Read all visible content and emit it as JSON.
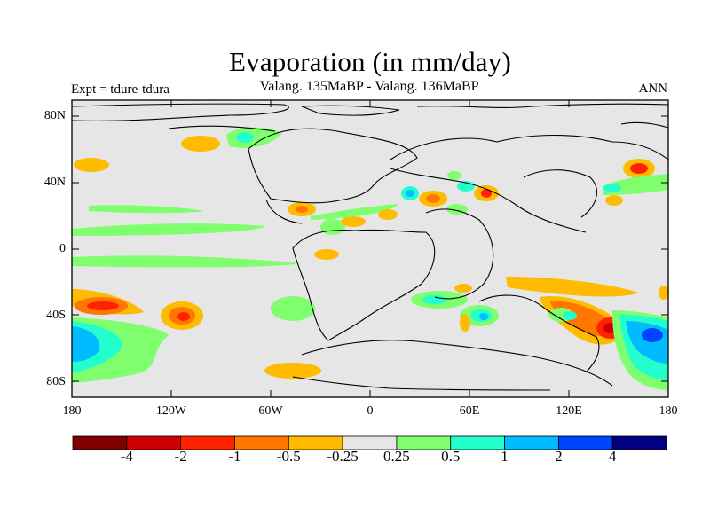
{
  "title": "Evaporation (in mm/day)",
  "subtitle": "Valang.  135MaBP - Valang.  136MaBP",
  "left_label": "Expt = tdure-tdura",
  "right_label": "ANN",
  "lat_ticks": [
    "80N",
    "40N",
    "0",
    "40S",
    "80S"
  ],
  "lon_ticks": [
    "180",
    "120W",
    "60W",
    "0",
    "60E",
    "120E",
    "180"
  ],
  "colorbar": {
    "colors": [
      "#800000",
      "#cc0000",
      "#ff2200",
      "#ff7700",
      "#ffbb00",
      "#e6e6e6",
      "#7fff6e",
      "#22ffcc",
      "#00bbff",
      "#0044ff",
      "#000080"
    ],
    "labels": [
      "-4",
      "-2",
      "-1",
      "-0.5",
      "-0.25",
      "0.25",
      "0.5",
      "1",
      "2",
      "4"
    ]
  },
  "colors": {
    "land": "#e6e6e6",
    "ocean_neutral": "#e6e6e6",
    "coast": "#000000"
  }
}
